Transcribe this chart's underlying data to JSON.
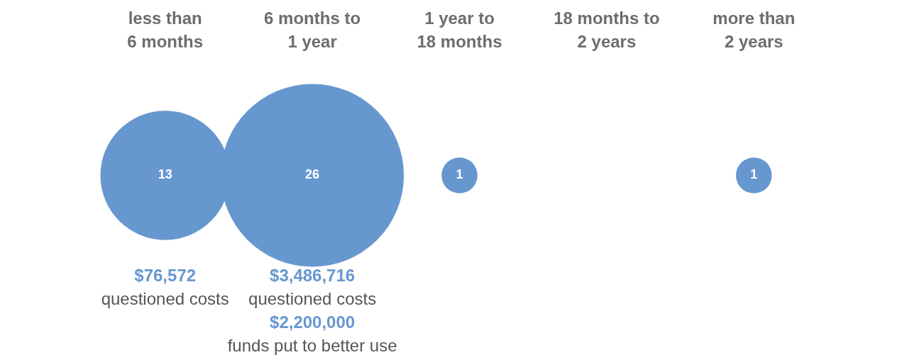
{
  "chart_data": {
    "type": "other",
    "categories": [
      "less than 6 months",
      "6 months to 1 year",
      "1 year to 18 months",
      "18 months to 2 years",
      "more than 2 years"
    ],
    "values": [
      13,
      26,
      1,
      null,
      1
    ],
    "color": "#6797cf",
    "data_labels": true,
    "annotations": [
      {
        "text": "$76,572",
        "x": "less than 6 months"
      },
      {
        "text": "questioned costs",
        "x": "less than 6 months"
      },
      {
        "text": "$3,486,716",
        "x": "6 months to 1 year"
      },
      {
        "text": "questioned costs",
        "x": "6 months to 1 year"
      },
      {
        "text": "$2,200,000",
        "x": "6 months to 1 year"
      },
      {
        "text": "funds put to better use",
        "x": "6 months to 1 year"
      }
    ]
  }
}
